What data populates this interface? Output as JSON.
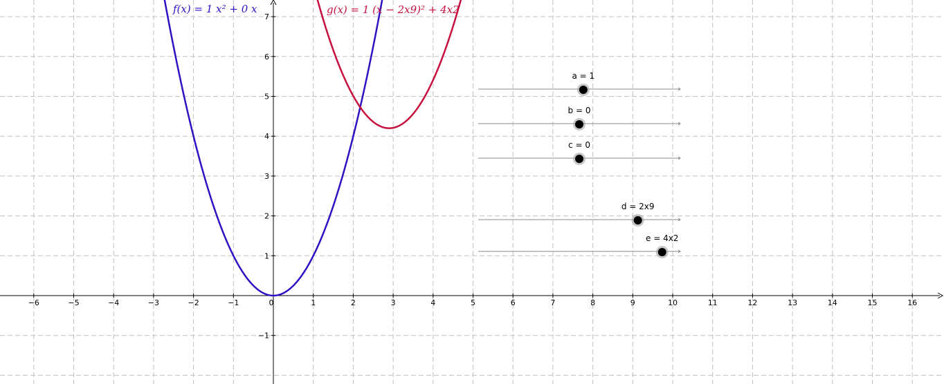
{
  "axes": {
    "x_ticks": [
      "−6",
      "−5",
      "−4",
      "−3",
      "−2",
      "−1",
      "0",
      "1",
      "2",
      "3",
      "4",
      "5",
      "6",
      "7",
      "8",
      "9",
      "10",
      "11",
      "12",
      "13",
      "14",
      "15",
      "16"
    ],
    "y_ticks": [
      "−1",
      "1",
      "2",
      "3",
      "4",
      "5",
      "6",
      "7"
    ],
    "grid": "dashed"
  },
  "functions": [
    {
      "label": "f(x)  =  1 x² + 0 x",
      "color": "#2e12c4"
    },
    {
      "label": "g(x)  =  1 (x − 2x9)² + 4x2",
      "color": "#c8103e"
    }
  ],
  "sliders": [
    {
      "label": "a = 1",
      "value_fraction": 0.52
    },
    {
      "label": "b = 0",
      "value_fraction": 0.5
    },
    {
      "label": "c = 0",
      "value_fraction": 0.5
    },
    {
      "label": "d = 2x9",
      "value_fraction": 0.79
    },
    {
      "label": "e = 4x2",
      "value_fraction": 0.91
    }
  ]
}
